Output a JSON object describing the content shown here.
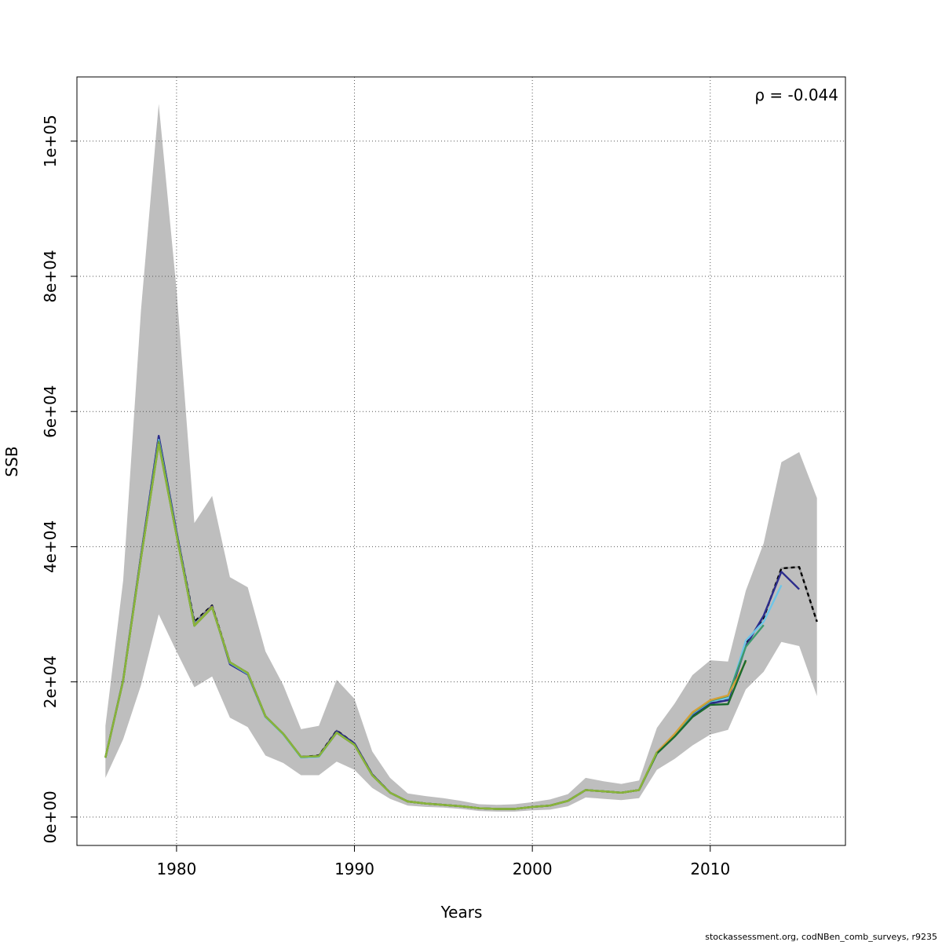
{
  "chart_data": {
    "type": "line",
    "title": "",
    "xlabel": "Years",
    "ylabel": "SSB",
    "xlim": [
      1974.4,
      2017.6
    ],
    "ylim": [
      -4200,
      109500
    ],
    "grid": true,
    "x_ticks": [
      1980,
      1990,
      2000,
      2010
    ],
    "x_tick_labels": [
      "1980",
      "1990",
      "2000",
      "2010"
    ],
    "y_ticks": [
      0,
      20000,
      40000,
      60000,
      80000,
      100000
    ],
    "y_tick_labels": [
      "0e+00",
      "2e+04",
      "4e+04",
      "6e+04",
      "8e+04",
      "1e+05"
    ],
    "annotation": "ρ = -0.044",
    "footer": "stockassessment.org, codNBen_comb_surveys, r9235",
    "band": {
      "color": "#bebebe",
      "x": [
        1976,
        1977,
        1978,
        1979,
        1980,
        1981,
        1982,
        1983,
        1984,
        1985,
        1986,
        1987,
        1988,
        1989,
        1990,
        1991,
        1992,
        1993,
        1994,
        1995,
        1996,
        1997,
        1998,
        1999,
        2000,
        2001,
        2002,
        2003,
        2004,
        2005,
        2006,
        2007,
        2008,
        2009,
        2010,
        2011,
        2012,
        2013,
        2014,
        2015,
        2016
      ],
      "upper": [
        13500,
        35000,
        75000,
        105500,
        78000,
        43500,
        47500,
        35500,
        34000,
        24500,
        19500,
        13000,
        13500,
        20300,
        17500,
        9700,
        5800,
        3500,
        3100,
        2800,
        2400,
        1900,
        1800,
        1900,
        2200,
        2600,
        3400,
        5800,
        5300,
        4900,
        5400,
        13200,
        16800,
        21000,
        23200,
        23000,
        33500,
        40500,
        52500,
        54000,
        47200
      ],
      "lower": [
        5800,
        11500,
        19500,
        30000,
        24500,
        19200,
        20800,
        14700,
        13300,
        9100,
        8000,
        6200,
        6200,
        8200,
        7000,
        4300,
        2700,
        1700,
        1500,
        1400,
        1200,
        900,
        800,
        800,
        1000,
        1100,
        1600,
        2900,
        2700,
        2500,
        2800,
        7000,
        8600,
        10600,
        12200,
        12900,
        18900,
        21500,
        25900,
        25300,
        17900
      ]
    },
    "series": [
      {
        "color": "#000000",
        "dashed": true,
        "x": [
          1976,
          1977,
          1978,
          1979,
          1980,
          1981,
          1982,
          1983,
          1984,
          1985,
          1986,
          1987,
          1988,
          1989,
          1990,
          1991,
          1992,
          1993,
          1994,
          1995,
          1996,
          1997,
          1998,
          1999,
          2000,
          2001,
          2002,
          2003,
          2004,
          2005,
          2006,
          2007,
          2008,
          2009,
          2010,
          2011,
          2012,
          2013,
          2014,
          2015,
          2016
        ],
        "values": [
          8800,
          20200,
          38500,
          56300,
          42100,
          28900,
          31300,
          22900,
          21300,
          14900,
          12300,
          8900,
          9100,
          12800,
          10900,
          6300,
          3600,
          2300,
          2000,
          1800,
          1600,
          1300,
          1200,
          1200,
          1500,
          1700,
          2400,
          4000,
          3800,
          3600,
          4000,
          9600,
          12200,
          15100,
          16900,
          17400,
          25600,
          29500,
          36800,
          37000,
          28900
        ]
      },
      {
        "color": "#2c2c8c",
        "dashed": false,
        "x": [
          1976,
          1977,
          1978,
          1979,
          1980,
          1981,
          1982,
          1983,
          1984,
          1985,
          1986,
          1987,
          1988,
          1989,
          1990,
          1991,
          1992,
          1993,
          1994,
          1995,
          1996,
          1997,
          1998,
          1999,
          2000,
          2001,
          2002,
          2003,
          2004,
          2005,
          2006,
          2007,
          2008,
          2009,
          2010,
          2011,
          2012,
          2013,
          2014,
          2015
        ],
        "values": [
          8800,
          20300,
          38700,
          56400,
          42200,
          28600,
          31200,
          22600,
          21100,
          14800,
          12300,
          8900,
          9000,
          12700,
          10900,
          6300,
          3600,
          2300,
          2000,
          1800,
          1600,
          1300,
          1200,
          1200,
          1500,
          1700,
          2400,
          4000,
          3800,
          3600,
          4000,
          9600,
          12100,
          15000,
          16800,
          17300,
          25300,
          29800,
          36300,
          33700
        ]
      },
      {
        "color": "#6ec6e8",
        "dashed": false,
        "x": [
          1976,
          1977,
          1978,
          1979,
          1980,
          1981,
          1982,
          1983,
          1984,
          1985,
          1986,
          1987,
          1988,
          1989,
          1990,
          1991,
          1992,
          1993,
          1994,
          1995,
          1996,
          1997,
          1998,
          1999,
          2000,
          2001,
          2002,
          2003,
          2004,
          2005,
          2006,
          2007,
          2008,
          2009,
          2010,
          2011,
          2012,
          2013,
          2014
        ],
        "values": [
          8800,
          20200,
          38400,
          55800,
          41900,
          28500,
          31100,
          22800,
          21200,
          14800,
          12200,
          8800,
          8900,
          12500,
          10700,
          6200,
          3600,
          2300,
          2000,
          1800,
          1600,
          1300,
          1200,
          1200,
          1500,
          1700,
          2400,
          4000,
          3800,
          3600,
          4000,
          9600,
          12200,
          15300,
          17100,
          17600,
          26100,
          28900,
          34300
        ]
      },
      {
        "color": "#3c9a6e",
        "dashed": false,
        "x": [
          1976,
          1977,
          1978,
          1979,
          1980,
          1981,
          1982,
          1983,
          1984,
          1985,
          1986,
          1987,
          1988,
          1989,
          1990,
          1991,
          1992,
          1993,
          1994,
          1995,
          1996,
          1997,
          1998,
          1999,
          2000,
          2001,
          2002,
          2003,
          2004,
          2005,
          2006,
          2007,
          2008,
          2009,
          2010,
          2011,
          2012,
          2013
        ],
        "values": [
          8800,
          20200,
          38400,
          55600,
          41800,
          28400,
          31100,
          22900,
          21300,
          14900,
          12300,
          8900,
          9000,
          12500,
          10700,
          6200,
          3600,
          2300,
          2000,
          1800,
          1600,
          1300,
          1200,
          1200,
          1500,
          1700,
          2400,
          4000,
          3800,
          3600,
          4000,
          9500,
          12200,
          15400,
          17200,
          17900,
          25200,
          28400
        ]
      },
      {
        "color": "#d4a037",
        "dashed": false,
        "x": [
          1976,
          1977,
          1978,
          1979,
          1980,
          1981,
          1982,
          1983,
          1984,
          1985,
          1986,
          1987,
          1988,
          1989,
          1990,
          1991,
          1992,
          1993,
          1994,
          1995,
          1996,
          1997,
          1998,
          1999,
          2000,
          2001,
          2002,
          2003,
          2004,
          2005,
          2006,
          2007,
          2008,
          2009,
          2010,
          2011,
          2012
        ],
        "values": [
          8800,
          20200,
          38300,
          55400,
          41700,
          28400,
          31100,
          22900,
          21300,
          14900,
          12300,
          8900,
          9000,
          12500,
          10700,
          6200,
          3600,
          2300,
          2000,
          1800,
          1600,
          1300,
          1200,
          1200,
          1500,
          1700,
          2400,
          4000,
          3800,
          3600,
          4000,
          9600,
          12300,
          15500,
          17300,
          18000,
          23000
        ]
      },
      {
        "color": "#1a6b2e",
        "dashed": false,
        "x": [
          1976,
          1977,
          1978,
          1979,
          1980,
          1981,
          1982,
          1983,
          1984,
          1985,
          1986,
          1987,
          1988,
          1989,
          1990,
          1991,
          1992,
          1993,
          1994,
          1995,
          1996,
          1997,
          1998,
          1999,
          2000,
          2001,
          2002,
          2003,
          2004,
          2005,
          2006,
          2007,
          2008,
          2009,
          2010,
          2011,
          2012
        ],
        "values": [
          8800,
          20200,
          38300,
          55300,
          41700,
          28300,
          31000,
          22900,
          21300,
          14900,
          12300,
          8900,
          9000,
          12500,
          10700,
          6200,
          3600,
          2300,
          2000,
          1800,
          1600,
          1300,
          1200,
          1200,
          1500,
          1700,
          2400,
          4000,
          3800,
          3600,
          4000,
          9400,
          11900,
          14800,
          16600,
          16700,
          23200
        ]
      },
      {
        "color": "#8ab43a",
        "dashed": false,
        "x": [
          1976,
          1977,
          1978,
          1979,
          1980,
          1981,
          1982,
          1983,
          1984,
          1985,
          1986,
          1987,
          1988,
          1989,
          1990,
          1991,
          1992,
          1993,
          1994,
          1995,
          1996,
          1997,
          1998,
          1999,
          2000,
          2001,
          2002,
          2003,
          2004,
          2005,
          2006,
          2007
        ],
        "values": [
          8800,
          20200,
          38300,
          55200,
          41700,
          28300,
          31000,
          22900,
          21300,
          14900,
          12300,
          8900,
          9000,
          12500,
          10700,
          6200,
          3600,
          2300,
          2000,
          1800,
          1600,
          1300,
          1200,
          1200,
          1500,
          1700,
          2400,
          4000,
          3800,
          3600,
          4000,
          9600
        ]
      }
    ]
  }
}
